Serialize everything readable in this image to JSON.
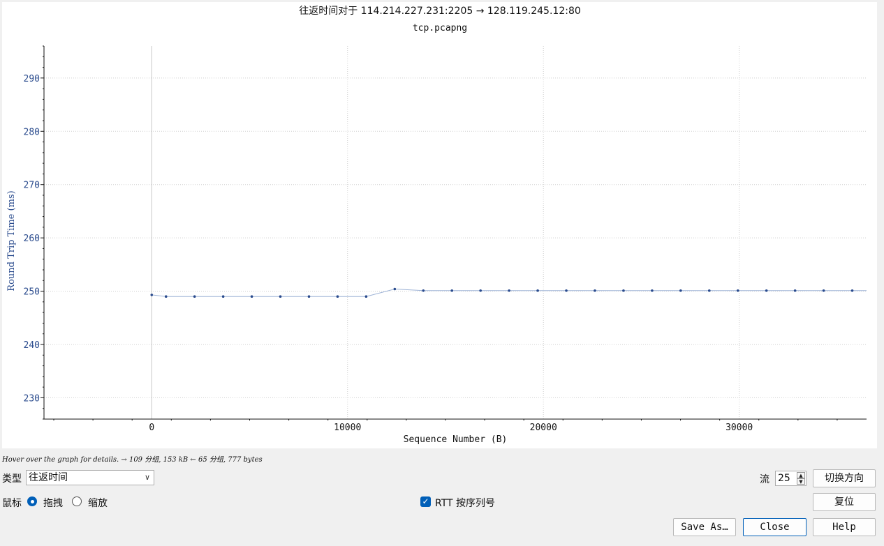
{
  "graph": {
    "title": "往返时间对于 114.214.227.231:2205 → 128.119.245.12:80",
    "subtitle": "tcp.pcapng"
  },
  "chart_data": {
    "type": "line",
    "title": "往返时间对于 114.214.227.231:2205 → 128.119.245.12:80",
    "subtitle": "tcp.pcapng",
    "xlabel": "Sequence Number (B)",
    "ylabel": "Round Trip Time (ms)",
    "xlim": [
      -5500,
      36500
    ],
    "ylim": [
      226,
      296
    ],
    "x_ticks": [
      0,
      10000,
      20000,
      30000
    ],
    "y_ticks": [
      230,
      240,
      250,
      260,
      270,
      280,
      290
    ],
    "grid": true,
    "color": "#2a4b8d",
    "line_color": "#9eb3d6",
    "series": [
      {
        "x": [
          0,
          730,
          2190,
          3650,
          5110,
          6570,
          8030,
          9490,
          10950,
          12410,
          13870,
          15330,
          16790,
          18250,
          19710,
          21170,
          22630,
          24090,
          25550,
          27010,
          28470,
          29930,
          31390,
          32850,
          34310,
          35770
        ],
        "y": [
          249.3,
          249.0,
          249.0,
          249.0,
          249.0,
          249.0,
          249.0,
          249.0,
          249.0,
          250.4,
          250.1,
          250.1,
          250.1,
          250.1,
          250.1,
          250.1,
          250.1,
          250.1,
          250.1,
          250.1,
          250.1,
          250.1,
          250.1,
          250.1,
          250.1,
          250.1
        ]
      }
    ]
  },
  "status": {
    "hint": "Hover over the graph for details. → 109 分组, 153 kB ← 65 分组, 777 bytes"
  },
  "controls": {
    "type_label": "类型",
    "type_value": "往返时间",
    "mouse_label": "鼠标",
    "drag_label": "拖拽",
    "zoom_label": "缩放",
    "rtt_checkbox_label": "RTT 按序列号",
    "stream_label": "流",
    "stream_value": "25",
    "switch_direction_button": "切换方向",
    "reset_button": "复位",
    "save_as_button": "Save As…",
    "close_button": "Close",
    "help_button": "Help"
  }
}
